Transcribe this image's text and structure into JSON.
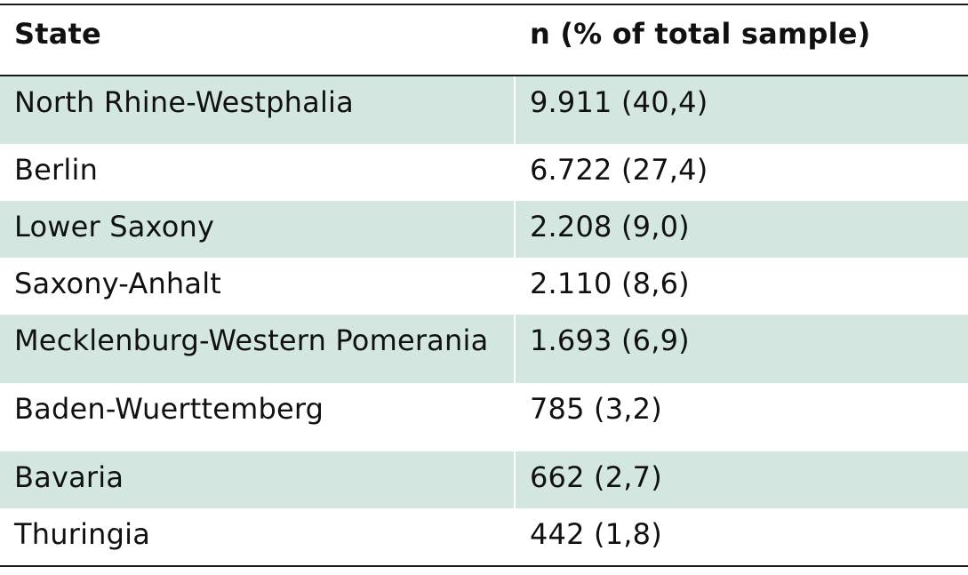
{
  "table": {
    "headers": [
      "State",
      "n (% of total sample)"
    ],
    "rows": [
      {
        "state": "North Rhine-Westphalia",
        "value": "9.911 (40,4)"
      },
      {
        "state": "Berlin",
        "value": "6.722 (27,4)"
      },
      {
        "state": "Lower Saxony",
        "value": "2.208 (9,0)"
      },
      {
        "state": "Saxony-Anhalt",
        "value": "2.110 (8,6)"
      },
      {
        "state": "Mecklenburg-Western Pomerania",
        "value": "1.693 (6,9)"
      },
      {
        "state": "Baden-Wuerttemberg",
        "value": "785 (3,2)"
      },
      {
        "state": "Bavaria",
        "value": "662 (2,7)"
      },
      {
        "state": "Thuringia",
        "value": "442 (1,8)"
      }
    ]
  },
  "colors": {
    "row_shade": "#d3e6e0",
    "rule": "#1a1a1a",
    "text": "#111111"
  }
}
